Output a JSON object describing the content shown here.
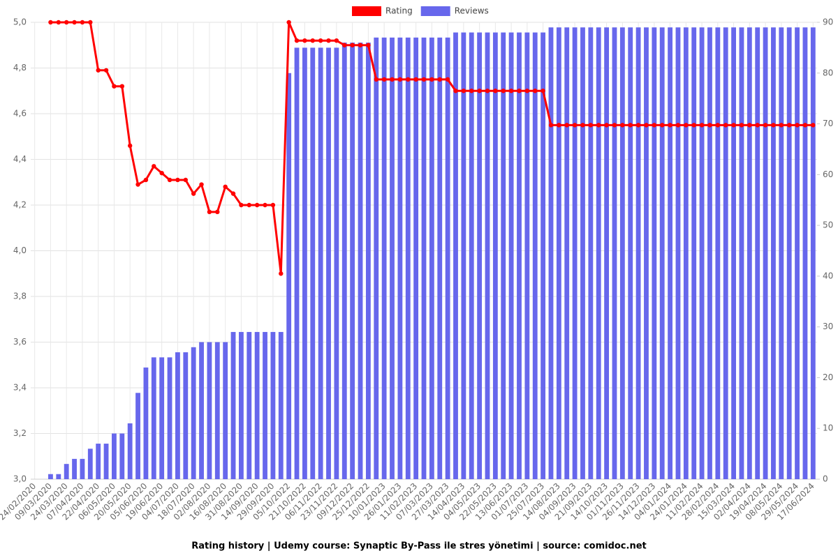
{
  "chart_data": {
    "type": "combo",
    "title": "Rating history | Udemy course: Synaptic By-Pass ile stres yönetimi | source: comidoc.net",
    "categories": [
      "24/02/2020",
      null,
      "09/03/2020",
      null,
      "24/03/2020",
      null,
      "07/04/2020",
      null,
      "22/04/2020",
      null,
      "06/05/2020",
      null,
      "20/05/2020",
      null,
      "05/06/2020",
      null,
      "19/06/2020",
      null,
      "04/07/2020",
      null,
      "18/07/2020",
      null,
      "02/08/2020",
      null,
      "16/08/2020",
      null,
      "31/08/2020",
      null,
      "14/09/2020",
      null,
      "29/09/2020",
      null,
      "05/10/2022",
      null,
      "21/10/2022",
      null,
      "06/11/2022",
      null,
      "23/11/2022",
      null,
      "09/12/2022",
      null,
      "25/12/2022",
      null,
      "10/01/2023",
      null,
      "26/01/2023",
      null,
      "11/02/2023",
      null,
      "07/03/2023",
      null,
      "27/03/2023",
      null,
      "14/04/2023",
      null,
      "04/05/2023",
      null,
      "22/05/2023",
      null,
      "13/06/2023",
      null,
      "01/07/2023",
      null,
      "25/07/2023",
      null,
      "14/08/2023",
      null,
      "04/09/2023",
      null,
      "21/09/2023",
      null,
      "14/10/2023",
      null,
      "01/11/2023",
      null,
      "26/11/2023",
      null,
      "14/12/2023",
      null,
      "04/01/2024",
      null,
      "24/01/2024",
      null,
      "11/02/2024",
      null,
      "28/02/2024",
      null,
      "15/03/2024",
      null,
      "02/04/2024",
      null,
      "19/04/2024",
      null,
      "08/05/2024",
      null,
      "29/05/2024",
      null,
      "17/06/2024"
    ],
    "series": [
      {
        "name": "Rating",
        "type": "line",
        "color": "#ff0000",
        "axis": "y",
        "values": [
          null,
          null,
          5.0,
          5.0,
          5.0,
          5.0,
          5.0,
          5.0,
          4.79,
          4.79,
          4.72,
          4.72,
          4.46,
          4.29,
          4.31,
          4.37,
          4.34,
          4.31,
          4.31,
          4.31,
          4.25,
          4.29,
          4.17,
          4.17,
          4.28,
          4.25,
          4.2,
          4.2,
          4.2,
          4.2,
          4.2,
          3.9,
          5.0,
          4.92,
          4.92,
          4.92,
          4.92,
          4.92,
          4.92,
          4.9,
          4.9,
          4.9,
          4.9,
          4.75,
          4.75,
          4.75,
          4.75,
          4.75,
          4.75,
          4.75,
          4.75,
          4.75,
          4.75,
          4.7,
          4.7,
          4.7,
          4.7,
          4.7,
          4.7,
          4.7,
          4.7,
          4.7,
          4.7,
          4.7,
          4.7,
          4.55,
          4.55,
          4.55,
          4.55,
          4.55,
          4.55,
          4.55,
          4.55,
          4.55,
          4.55,
          4.55,
          4.55,
          4.55,
          4.55,
          4.55,
          4.55,
          4.55,
          4.55,
          4.55,
          4.55,
          4.55,
          4.55,
          4.55,
          4.55,
          4.55,
          4.55,
          4.55,
          4.55,
          4.55,
          4.55,
          4.55,
          4.55,
          4.55,
          4.55
        ]
      },
      {
        "name": "Reviews",
        "type": "bar",
        "color": "#6767ec",
        "axis": "y2",
        "values": [
          0,
          0,
          1,
          1,
          3,
          4,
          4,
          6,
          7,
          7,
          9,
          9,
          11,
          17,
          22,
          24,
          24,
          24,
          25,
          25,
          26,
          27,
          27,
          27,
          27,
          29,
          29,
          29,
          29,
          29,
          29,
          29,
          80,
          85,
          85,
          85,
          85,
          85,
          85,
          86,
          86,
          86,
          86,
          87,
          87,
          87,
          87,
          87,
          87,
          87,
          87,
          87,
          87,
          88,
          88,
          88,
          88,
          88,
          88,
          88,
          88,
          88,
          88,
          88,
          88,
          89,
          89,
          89,
          89,
          89,
          89,
          89,
          89,
          89,
          89,
          89,
          89,
          89,
          89,
          89,
          89,
          89,
          89,
          89,
          89,
          89,
          89,
          89,
          89,
          89,
          89,
          89,
          89,
          89,
          89,
          89,
          89,
          89,
          89
        ]
      }
    ],
    "ylim": [
      3.0,
      5.0
    ],
    "yticks": [
      {
        "value": 3.0,
        "label": "3,0"
      },
      {
        "value": 3.2,
        "label": "3,2"
      },
      {
        "value": 3.4,
        "label": "3,4"
      },
      {
        "value": 3.6,
        "label": "3,6"
      },
      {
        "value": 3.8,
        "label": "3,8"
      },
      {
        "value": 4.0,
        "label": "4,0"
      },
      {
        "value": 4.2,
        "label": "4,2"
      },
      {
        "value": 4.4,
        "label": "4,4"
      },
      {
        "value": 4.6,
        "label": "4,6"
      },
      {
        "value": 4.8,
        "label": "4,8"
      },
      {
        "value": 5.0,
        "label": "5,0"
      }
    ],
    "y2lim": [
      0,
      90
    ],
    "y2ticks": [
      0,
      10,
      20,
      30,
      40,
      50,
      60,
      70,
      80,
      90
    ],
    "grid": true,
    "legend": "top"
  }
}
